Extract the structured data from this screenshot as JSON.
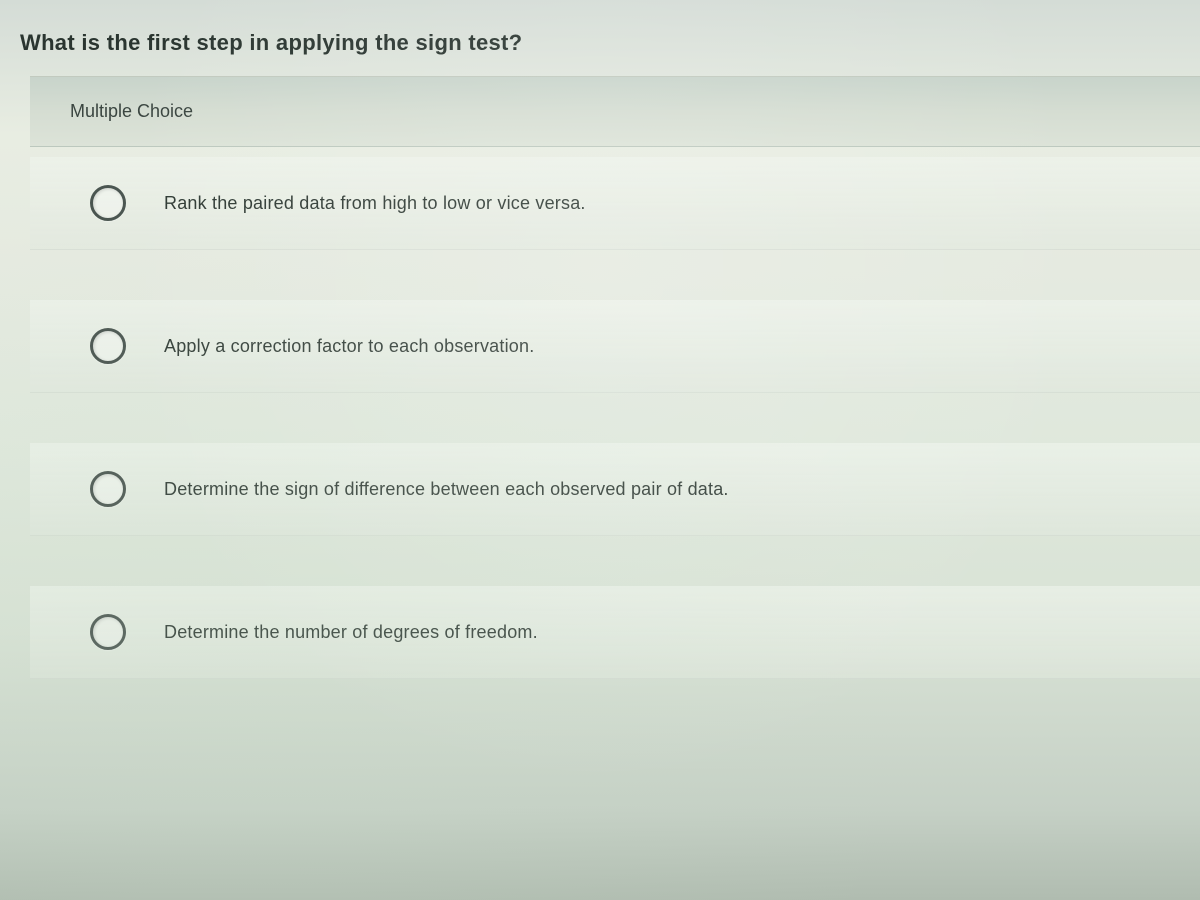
{
  "question": {
    "prompt": "What is the first step in applying the sign test?",
    "section_label": "Multiple Choice",
    "options": [
      {
        "id": "opt1",
        "text": "Rank the paired data from high to low or vice versa."
      },
      {
        "id": "opt2",
        "text": "Apply a correction factor to each observation."
      },
      {
        "id": "opt3",
        "text": "Determine the sign of difference between each observed pair of data."
      },
      {
        "id": "opt4",
        "text": "Determine the number of degrees of freedom."
      }
    ]
  },
  "styling": {
    "background_gradient_top": "#d4dcd6",
    "background_gradient_mid": "#e5eae0",
    "background_gradient_bottom": "#b0bcb0",
    "header_bg": "#d5ddd2",
    "option_bg": "#e6ede3",
    "text_color": "#2a3530",
    "radio_border_color": "#4a5550",
    "question_fontsize": 22,
    "section_fontsize": 18,
    "option_fontsize": 18,
    "radio_diameter": 36
  }
}
